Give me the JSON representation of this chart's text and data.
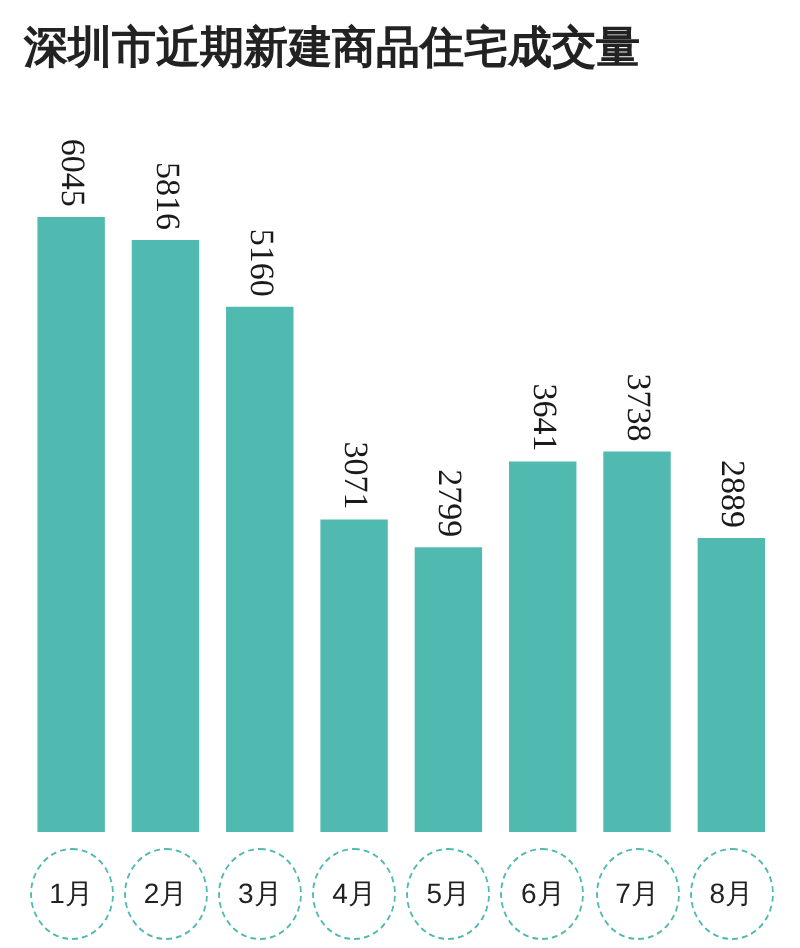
{
  "chart_data": {
    "type": "bar",
    "title": "深圳市近期新建商品住宅成交量",
    "categories": [
      "1月",
      "2月",
      "3月",
      "4月",
      "5月",
      "6月",
      "7月",
      "8月"
    ],
    "values": [
      6045,
      5816,
      5160,
      3071,
      2799,
      3641,
      3738,
      2889
    ],
    "color": "#50bab0",
    "data_labels": true,
    "tick_labels": "x"
  }
}
